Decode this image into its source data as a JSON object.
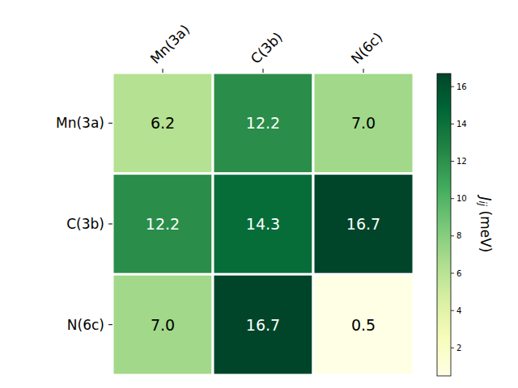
{
  "chart_data": {
    "type": "heatmap",
    "x_categories": [
      "Mn(3a)",
      "C(3b)",
      "N(6c)"
    ],
    "y_categories": [
      "Mn(3a)",
      "C(3b)",
      "N(6c)"
    ],
    "cells": [
      [
        6.2,
        12.2,
        7.0
      ],
      [
        12.2,
        14.3,
        16.7
      ],
      [
        7.0,
        16.7,
        0.5
      ]
    ],
    "value_labels": [
      [
        "6.2",
        "12.2",
        "7.0"
      ],
      [
        "12.2",
        "14.3",
        "16.7"
      ],
      [
        "7.0",
        "16.7",
        "0.5"
      ]
    ],
    "data_labels": true,
    "colorbar": {
      "label": {
        "symbol": "J",
        "subscript": "ij",
        "unit": "(meV)"
      },
      "lim": [
        0.5,
        16.7
      ],
      "ticks": [
        2,
        4,
        6,
        8,
        10,
        12,
        14,
        16
      ]
    }
  }
}
